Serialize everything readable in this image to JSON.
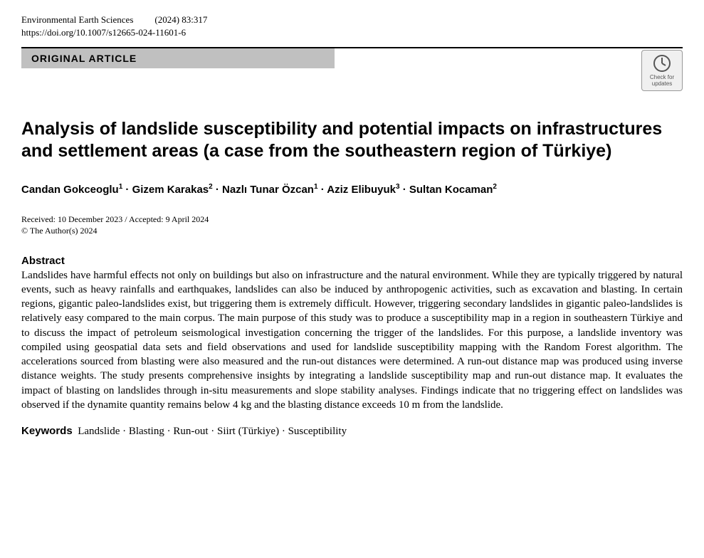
{
  "header": {
    "journal": "Environmental Earth Sciences",
    "year_issue": "(2024) 83:317",
    "doi": "https://doi.org/10.1007/s12665-024-11601-6"
  },
  "article_type": "ORIGINAL ARTICLE",
  "check_updates": {
    "label1": "Check for",
    "label2": "updates"
  },
  "title": "Analysis of landslide susceptibility and potential impacts on infrastructures and settlement areas (a case from the southeastern region of Türkiye)",
  "authors_html": "Candan Gokceoglu<sup>1</sup> · Gizem Karakas<sup>2</sup> · Nazlı Tunar Özcan<sup>1</sup> · Aziz Elibuyuk<sup>3</sup> · Sultan Kocaman<sup>2</sup>",
  "dates": "Received: 10 December 2023 / Accepted: 9 April 2024",
  "copyright": "© The Author(s) 2024",
  "abstract_heading": "Abstract",
  "abstract_body": "Landslides have harmful effects not only on buildings but also on infrastructure and the natural environment. While they are typically triggered by natural events, such as heavy rainfalls and earthquakes, landslides can also be induced by anthropogenic activities, such as excavation and blasting. In certain regions, gigantic paleo-landslides exist, but triggering them is extremely difficult. However, triggering secondary landslides in gigantic paleo-landslides is relatively easy compared to the main corpus. The main purpose of this study was to produce a susceptibility map in a region in southeastern Türkiye and to discuss the impact of petroleum seismological investigation concerning the trigger of the landslides. For this purpose, a landslide inventory was compiled using geospatial data sets and field observations and used for landslide susceptibility mapping with the Random Forest algorithm. The accelerations sourced from blasting were also measured and the run-out distances were determined. A run-out distance map was produced using inverse distance weights. The study presents comprehensive insights by integrating a landslide susceptibility map and run-out distance map. It evaluates the impact of blasting on landslides through in-situ measurements and slope stability analyses. Findings indicate that no triggering effect on landslides was observed if the dynamite quantity remains below 4 kg and the blasting distance exceeds 10 m from the landslide.",
  "keywords_label": "Keywords",
  "keywords": "Landslide · Blasting · Run-out · Siirt (Türkiye) · Susceptibility"
}
